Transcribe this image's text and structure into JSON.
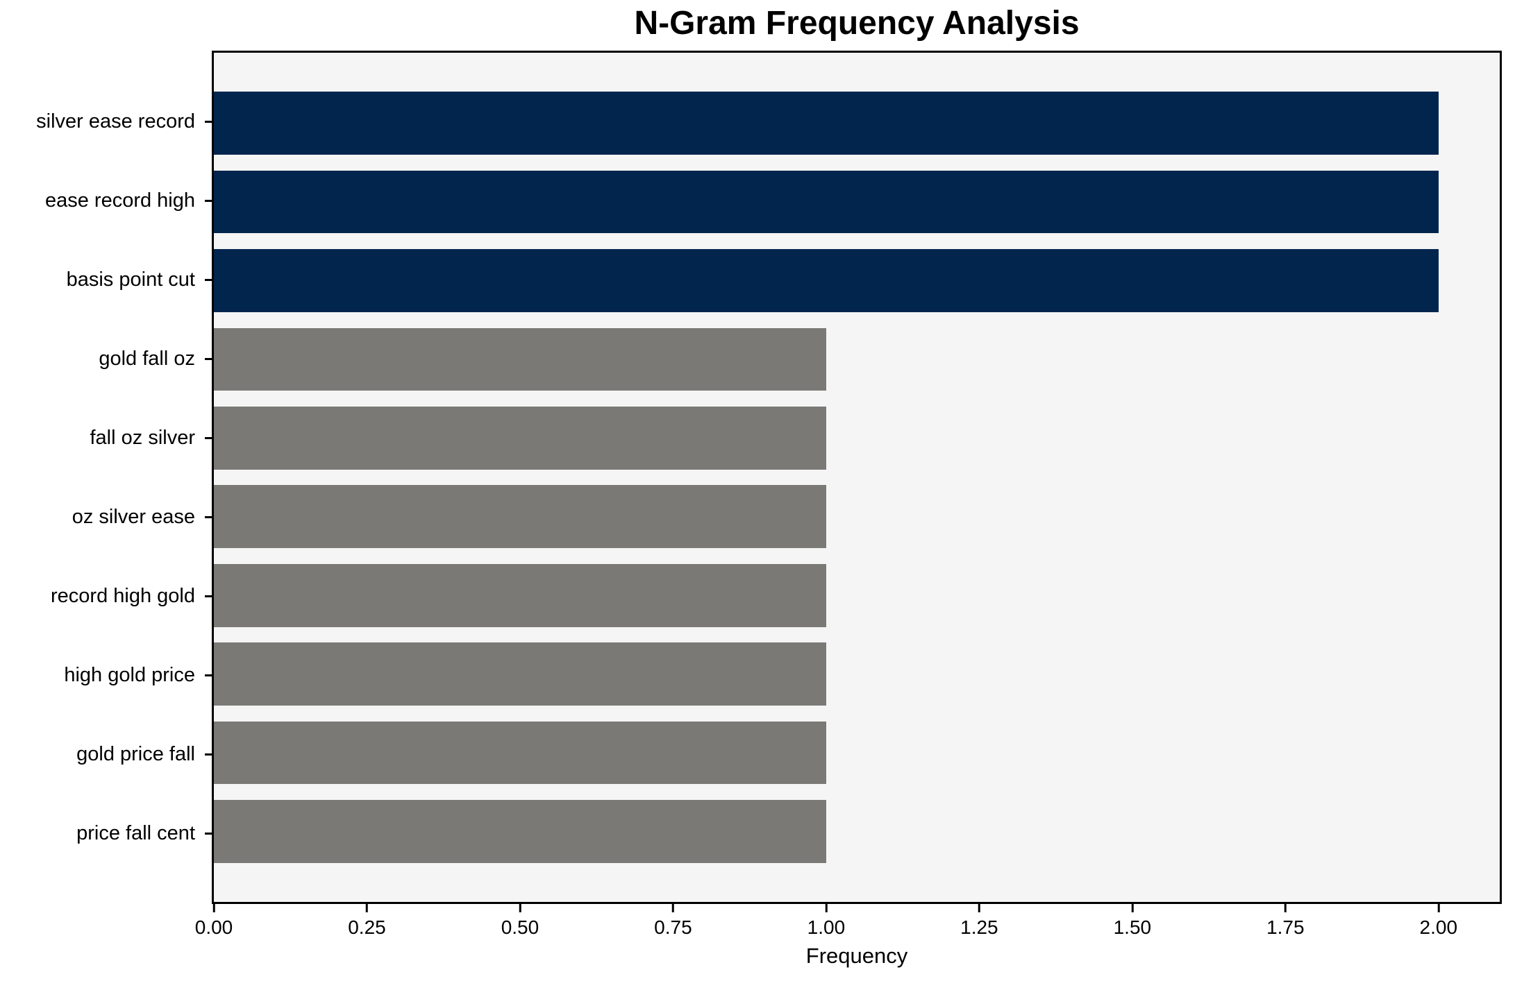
{
  "chart_data": {
    "type": "bar",
    "orientation": "horizontal",
    "title": "N-Gram Frequency Analysis",
    "xlabel": "Frequency",
    "categories": [
      "silver ease record",
      "ease record high",
      "basis point cut",
      "gold fall oz",
      "fall oz silver",
      "oz silver ease",
      "record high gold",
      "high gold price",
      "gold price fall",
      "price fall cent"
    ],
    "values": [
      2,
      2,
      2,
      1,
      1,
      1,
      1,
      1,
      1,
      1
    ],
    "bar_colors": [
      "#02254e",
      "#02254e",
      "#02254e",
      "#7a7975",
      "#7a7975",
      "#7a7975",
      "#7a7975",
      "#7a7975",
      "#7a7975",
      "#7a7975"
    ],
    "highlight_color": "#02254e",
    "base_color": "#7a7975",
    "xlim": [
      0,
      2.1
    ],
    "xticks": [
      0,
      0.25,
      0.5,
      0.75,
      1,
      1.25,
      1.5,
      1.75,
      2
    ],
    "xtick_labels": [
      "0.00",
      "0.25",
      "0.50",
      "0.75",
      "1.00",
      "1.25",
      "1.50",
      "1.75",
      "2.00"
    ],
    "plot_background": "#f5f5f5",
    "figure_background": "#ffffff",
    "grid": false,
    "legend": null
  }
}
